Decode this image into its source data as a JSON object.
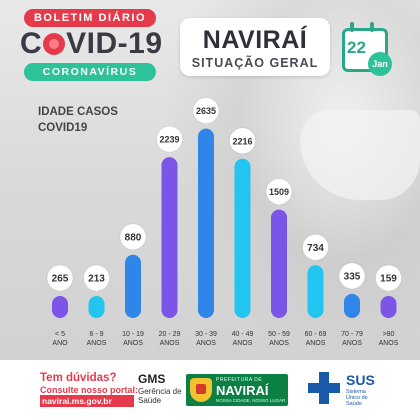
{
  "header": {
    "badge_top": "BOLETIM DIÁRIO",
    "brand_left": "C",
    "brand_right": "VID-19",
    "badge_bottom": "CORONAVÍRUS",
    "city": "NAVIRAÍ",
    "subtitle": "SITUAÇÃO GERAL",
    "calendar_day": "22",
    "calendar_month": "Jan"
  },
  "colors": {
    "red": "#e53a4c",
    "green": "#2ec29a",
    "purple": "#7a55e8",
    "blue": "#2f86e8",
    "cyan": "#22c4f0"
  },
  "chart_data": {
    "type": "bar",
    "title_line1": "IDADE CASOS",
    "title_line2": "COVID19",
    "categories": [
      [
        "< 5",
        "ANO"
      ],
      [
        "6 - 9",
        "ANOS"
      ],
      [
        "10 - 19",
        "ANOS"
      ],
      [
        "20 - 29",
        "ANOS"
      ],
      [
        "30 - 39",
        "ANOS"
      ],
      [
        "40 - 49",
        "ANOS"
      ],
      [
        "50 - 59",
        "ANOS"
      ],
      [
        "60 - 69",
        "ANOS"
      ],
      [
        "70 - 79",
        "ANOS"
      ],
      [
        ">80",
        "ANOS"
      ]
    ],
    "values": [
      265,
      213,
      880,
      2239,
      2635,
      2216,
      1509,
      734,
      335,
      159
    ],
    "labels": [
      "265",
      "213",
      "880",
      "2239",
      "2635",
      "2216",
      "1509",
      "734",
      "335",
      "159"
    ],
    "bar_colors": [
      "#7a55e8",
      "#22c4f0",
      "#2f86e8",
      "#7a55e8",
      "#2f86e8",
      "#22c4f0",
      "#7a55e8",
      "#22c4f0",
      "#2f86e8",
      "#7a55e8"
    ],
    "ylim": [
      0,
      2700
    ]
  },
  "footer": {
    "duvidas": "Tem dúvidas?",
    "consulte": "Consulte nosso portal:",
    "portal": "navirai.ms.gov.br",
    "gms": "GMS",
    "gms_sub1": "Gerência de",
    "gms_sub2": "Saúde",
    "pref_top": "PREFEITURA DE",
    "pref_city": "NAVIRAÍ",
    "pref_bottom": "NOSSA CIDADE, NOSSO LUGAR",
    "sus": "SUS",
    "sus_sub": "Sistema Único de Saúde"
  }
}
